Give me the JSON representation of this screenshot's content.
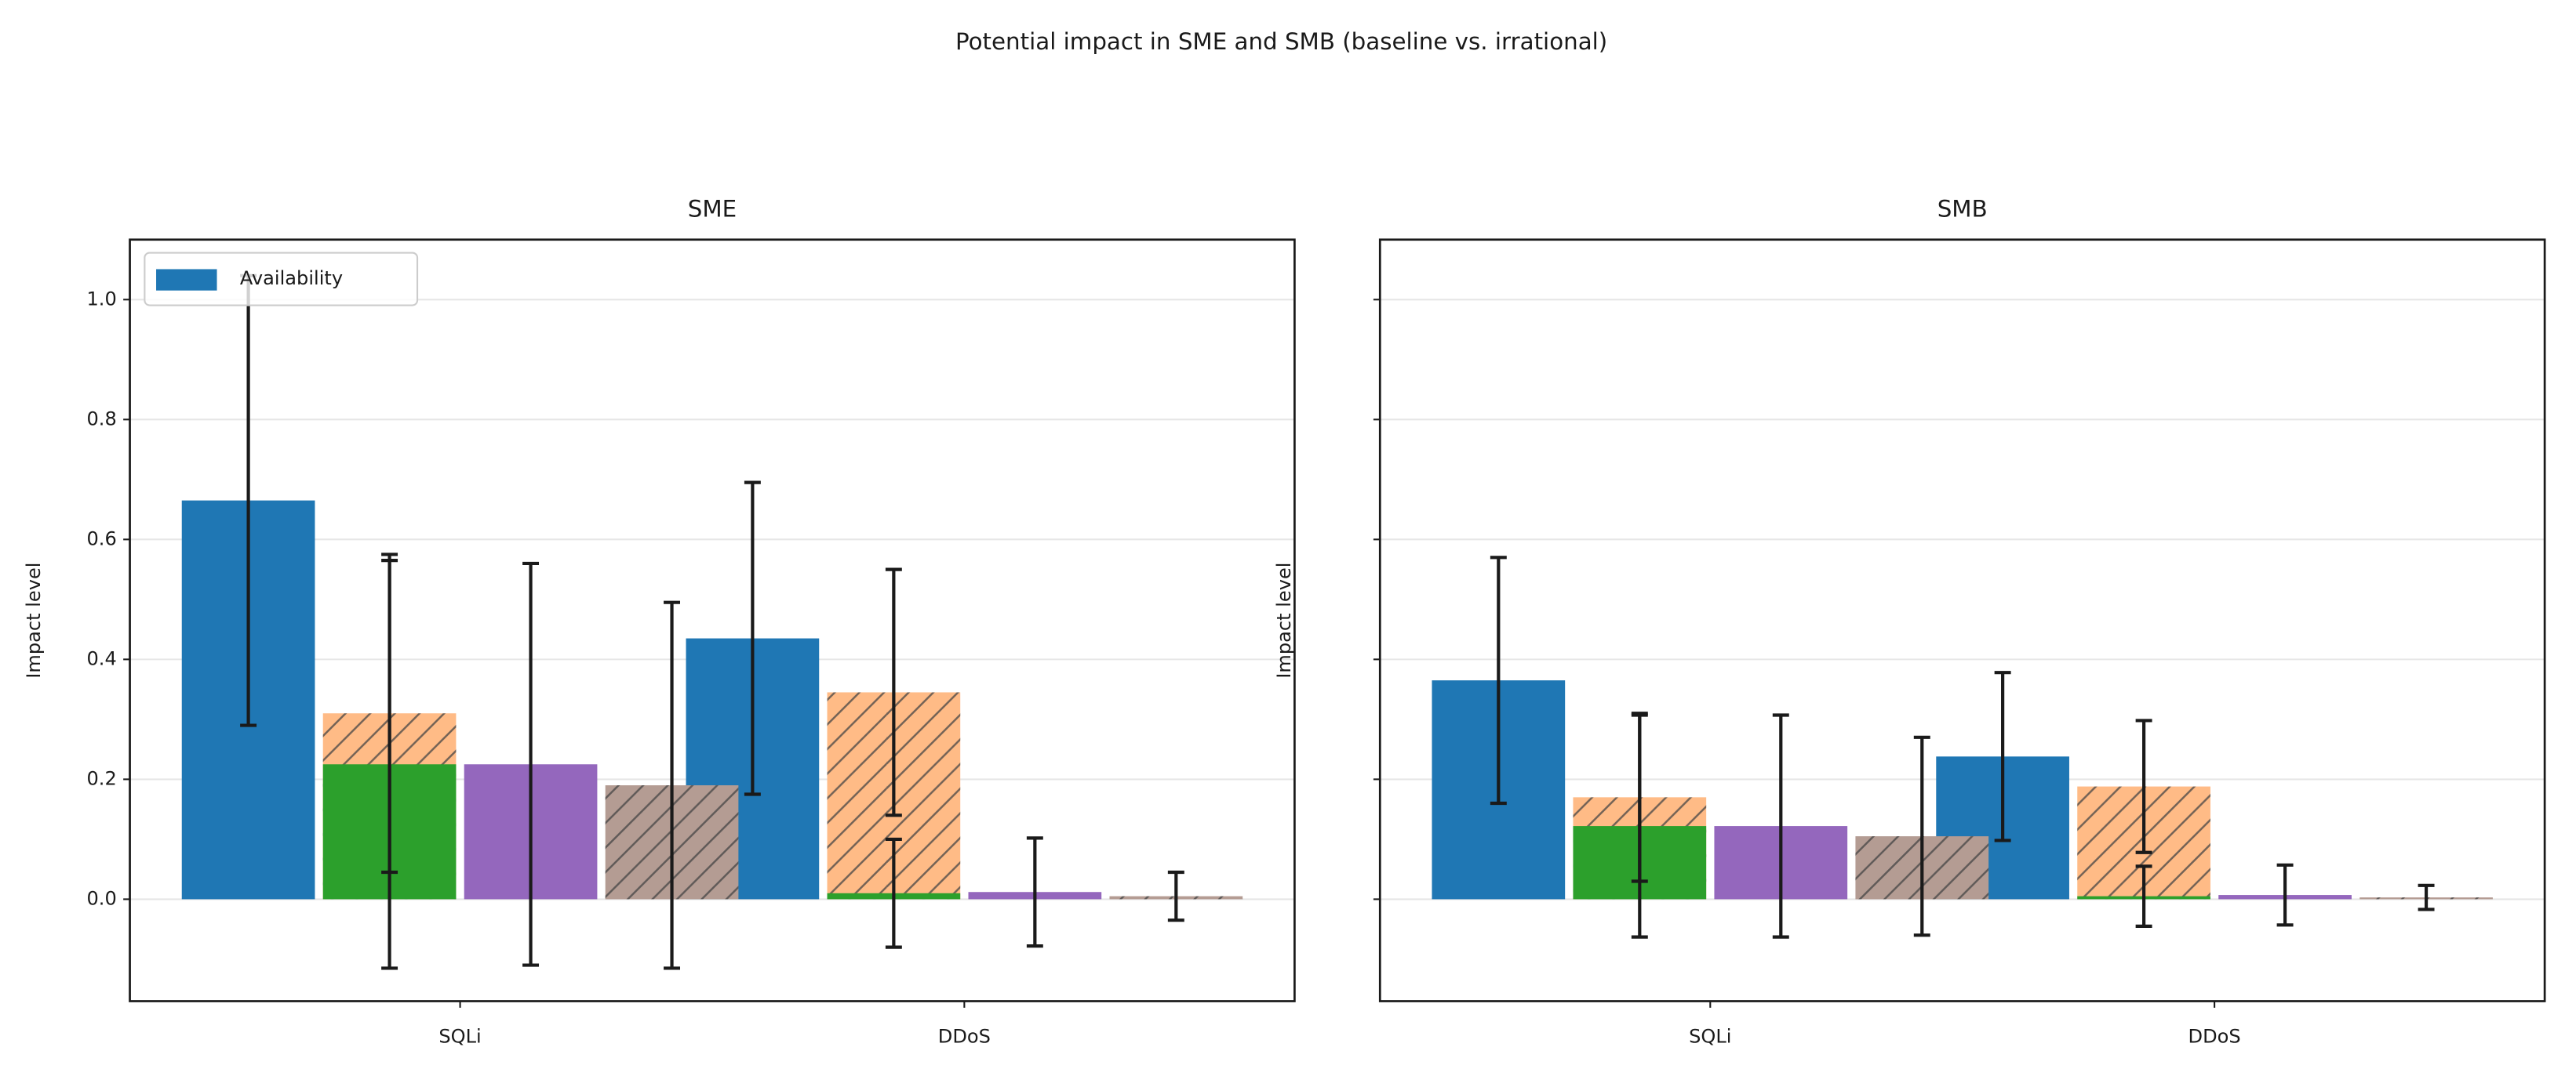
{
  "title": "Potential impact in SME and SMB (baseline vs. irrational)",
  "chart_data": [
    {
      "type": "bar",
      "title": "SME",
      "y_label": "Impact level",
      "categories": [
        "SQLi",
        "DDoS"
      ],
      "ylim": [
        -0.17,
        1.1
      ],
      "yticks": [
        {
          "value": 0,
          "label": "0.0"
        },
        0.2,
        0.4,
        0.6,
        0.8,
        {
          "value": 1,
          "label": "1.0"
        }
      ],
      "grid": true,
      "legend": "upper left",
      "series": [
        {
          "name": "Availability",
          "color": "#1f77b4",
          "values": [
            0.665,
            0.435
          ],
          "errors": [
            0.375,
            0.26
          ]
        },
        {
          "color": "#ffbb86",
          "hatch": true,
          "values": [
            0.31,
            0.345
          ],
          "errors": [
            0.265,
            0.205
          ]
        },
        {
          "color": "#2ca02c",
          "values": [
            0.225,
            0.01
          ],
          "errors": [
            0.34,
            0.09
          ]
        },
        {
          "color": "#9467bd",
          "values": [
            0.225,
            0.012
          ],
          "errors": [
            0.335,
            0.09
          ]
        },
        {
          "color": "#b49c93",
          "hatch": true,
          "values": [
            0.19,
            0.005
          ],
          "errors": [
            0.305,
            0.04
          ]
        }
      ]
    },
    {
      "type": "bar",
      "title": "SMB",
      "y_label": "Impact level",
      "categories": [
        "SQLi",
        "DDoS"
      ],
      "ylim": [
        -0.17,
        1.1
      ],
      "yticks": [
        0,
        0.2,
        0.4,
        0.6,
        0.8,
        1
      ],
      "grid": true,
      "series": [
        {
          "color": "#1f77b4",
          "values": [
            0.365,
            0.238
          ],
          "errors": [
            0.205,
            0.14
          ]
        },
        {
          "color": "#ffbb86",
          "hatch": true,
          "values": [
            0.17,
            0.188
          ],
          "errors": [
            0.14,
            0.11
          ]
        },
        {
          "color": "#2ca02c",
          "values": [
            0.122,
            0.005
          ],
          "errors": [
            0.185,
            0.05
          ]
        },
        {
          "color": "#9467bd",
          "values": [
            0.122,
            0.007
          ],
          "errors": [
            0.185,
            0.05
          ]
        },
        {
          "color": "#b49c93",
          "hatch": true,
          "values": [
            0.105,
            0.003
          ],
          "errors": [
            0.165,
            0.02
          ]
        }
      ]
    }
  ]
}
